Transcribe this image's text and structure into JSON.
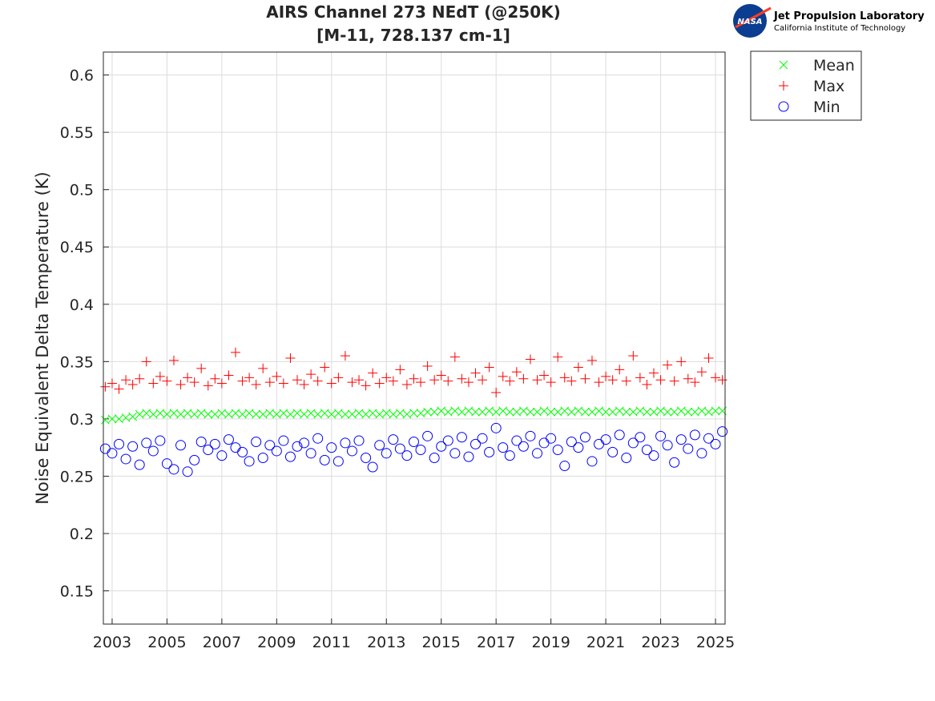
{
  "chart_data": {
    "type": "scatter",
    "title": "AIRS Channel 273 NEdT (@250K)",
    "subtitle": "[M-11, 728.137 cm-1]",
    "y_label": "Noise Equivalent Delta Temperature (K)",
    "logo": {
      "emblem": "NASA",
      "name": "Jet Propulsion Laboratory",
      "institution": "California Institute of Technology"
    },
    "xlim": [
      2002.68,
      2025.35
    ],
    "xticks": [
      2003,
      2005,
      2007,
      2009,
      2011,
      2013,
      2015,
      2017,
      2019,
      2021,
      2023,
      2025
    ],
    "ylim": [
      0.121,
      0.62
    ],
    "yticks": [
      0.15,
      0.2,
      0.25,
      0.3,
      0.35,
      0.4,
      0.45,
      0.5,
      0.55,
      0.6
    ],
    "grid": true,
    "legend": "outside-top-right",
    "x": [
      2002.75,
      2003,
      2003.25,
      2003.5,
      2003.75,
      2004,
      2004.25,
      2004.5,
      2004.75,
      2005,
      2005.25,
      2005.5,
      2005.75,
      2006,
      2006.25,
      2006.5,
      2006.75,
      2007,
      2007.25,
      2007.5,
      2007.75,
      2008,
      2008.25,
      2008.5,
      2008.75,
      2009,
      2009.25,
      2009.5,
      2009.75,
      2010,
      2010.25,
      2010.5,
      2010.75,
      2011,
      2011.25,
      2011.5,
      2011.75,
      2012,
      2012.25,
      2012.5,
      2012.75,
      2013,
      2013.25,
      2013.5,
      2013.75,
      2014,
      2014.25,
      2014.5,
      2014.75,
      2015,
      2015.25,
      2015.5,
      2015.75,
      2016,
      2016.25,
      2016.5,
      2016.75,
      2017,
      2017.25,
      2017.5,
      2017.75,
      2018,
      2018.25,
      2018.5,
      2018.75,
      2019,
      2019.25,
      2019.5,
      2019.75,
      2020,
      2020.25,
      2020.5,
      2020.75,
      2021,
      2021.25,
      2021.5,
      2021.75,
      2022,
      2022.25,
      2022.5,
      2022.75,
      2023,
      2023.25,
      2023.5,
      2023.75,
      2024,
      2024.25,
      2024.5,
      2024.75,
      2025,
      2025.25
    ],
    "series": [
      {
        "name": "Mean",
        "color": "#00ff00",
        "marker": "x",
        "values": [
          0.299,
          0.3,
          0.3,
          0.301,
          0.302,
          0.304,
          0.305,
          0.304,
          0.305,
          0.304,
          0.305,
          0.304,
          0.305,
          0.304,
          0.305,
          0.304,
          0.304,
          0.305,
          0.304,
          0.305,
          0.304,
          0.305,
          0.304,
          0.304,
          0.305,
          0.304,
          0.305,
          0.304,
          0.305,
          0.304,
          0.305,
          0.304,
          0.305,
          0.304,
          0.305,
          0.304,
          0.304,
          0.305,
          0.304,
          0.305,
          0.304,
          0.305,
          0.304,
          0.305,
          0.304,
          0.305,
          0.305,
          0.306,
          0.306,
          0.307,
          0.306,
          0.307,
          0.306,
          0.307,
          0.306,
          0.306,
          0.307,
          0.306,
          0.307,
          0.306,
          0.306,
          0.307,
          0.306,
          0.306,
          0.307,
          0.306,
          0.306,
          0.307,
          0.306,
          0.307,
          0.306,
          0.306,
          0.307,
          0.306,
          0.306,
          0.307,
          0.306,
          0.306,
          0.307,
          0.306,
          0.306,
          0.307,
          0.306,
          0.306,
          0.307,
          0.306,
          0.306,
          0.307,
          0.306,
          0.307,
          0.307
        ]
      },
      {
        "name": "Max",
        "color": "#ff0000",
        "marker": "plus",
        "values": [
          0.328,
          0.331,
          0.326,
          0.334,
          0.33,
          0.335,
          0.35,
          0.331,
          0.337,
          0.333,
          0.351,
          0.33,
          0.336,
          0.332,
          0.344,
          0.329,
          0.335,
          0.331,
          0.338,
          0.358,
          0.333,
          0.336,
          0.33,
          0.344,
          0.332,
          0.337,
          0.331,
          0.353,
          0.334,
          0.33,
          0.339,
          0.333,
          0.345,
          0.331,
          0.336,
          0.355,
          0.332,
          0.334,
          0.329,
          0.34,
          0.331,
          0.336,
          0.333,
          0.343,
          0.33,
          0.335,
          0.332,
          0.346,
          0.334,
          0.338,
          0.333,
          0.354,
          0.335,
          0.332,
          0.34,
          0.334,
          0.345,
          0.323,
          0.337,
          0.333,
          0.341,
          0.335,
          0.352,
          0.334,
          0.338,
          0.332,
          0.354,
          0.336,
          0.333,
          0.345,
          0.335,
          0.351,
          0.332,
          0.337,
          0.334,
          0.343,
          0.333,
          0.355,
          0.336,
          0.33,
          0.34,
          0.334,
          0.347,
          0.333,
          0.35,
          0.335,
          0.332,
          0.341,
          0.353,
          0.336,
          0.334
        ]
      },
      {
        "name": "Min",
        "color": "#0000ff",
        "marker": "circle",
        "values": [
          0.274,
          0.27,
          0.278,
          0.265,
          0.276,
          0.26,
          0.279,
          0.272,
          0.281,
          0.261,
          0.256,
          0.277,
          0.254,
          0.264,
          0.28,
          0.273,
          0.278,
          0.268,
          0.282,
          0.275,
          0.271,
          0.263,
          0.28,
          0.266,
          0.277,
          0.272,
          0.281,
          0.267,
          0.276,
          0.279,
          0.27,
          0.283,
          0.264,
          0.275,
          0.263,
          0.279,
          0.272,
          0.281,
          0.266,
          0.258,
          0.277,
          0.27,
          0.282,
          0.274,
          0.268,
          0.28,
          0.273,
          0.285,
          0.266,
          0.276,
          0.281,
          0.27,
          0.284,
          0.267,
          0.278,
          0.283,
          0.271,
          0.292,
          0.275,
          0.268,
          0.281,
          0.276,
          0.285,
          0.27,
          0.279,
          0.283,
          0.273,
          0.259,
          0.28,
          0.275,
          0.284,
          0.263,
          0.278,
          0.282,
          0.271,
          0.286,
          0.266,
          0.279,
          0.284,
          0.273,
          0.268,
          0.285,
          0.277,
          0.262,
          0.282,
          0.274,
          0.286,
          0.27,
          0.283,
          0.278,
          0.289
        ]
      }
    ]
  }
}
